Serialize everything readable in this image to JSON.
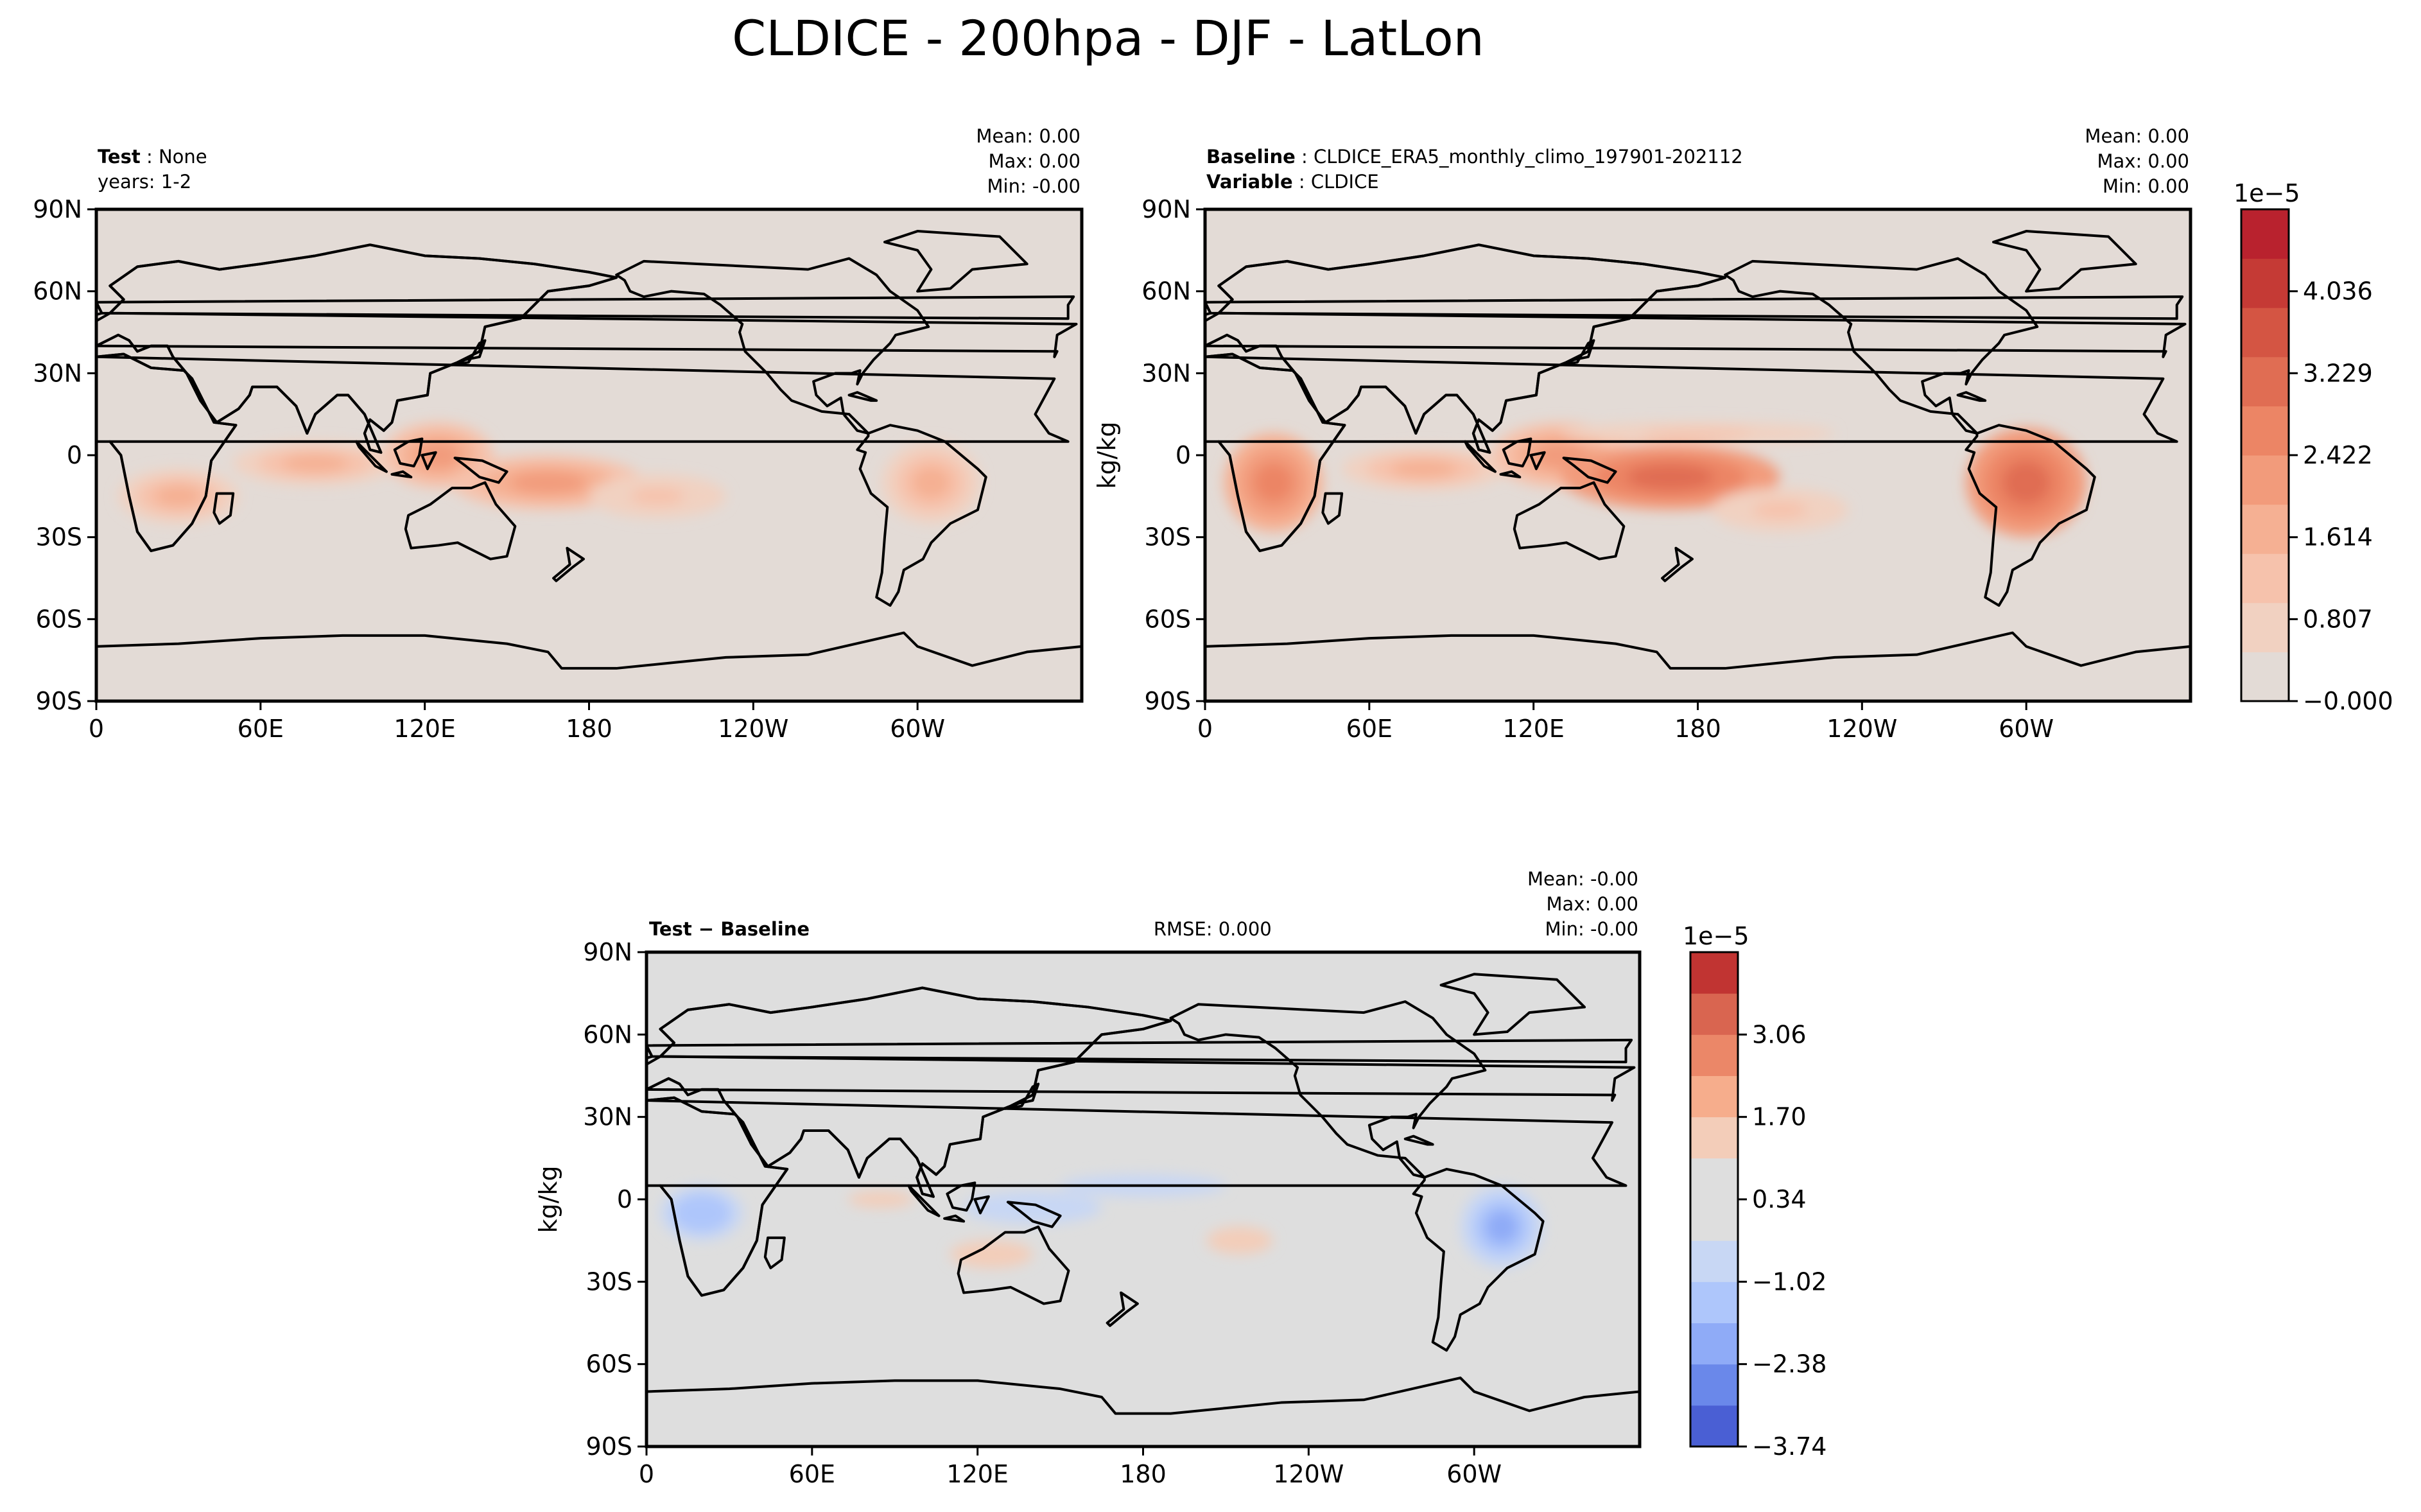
{
  "figure": {
    "title": "CLDICE - 200hpa - DJF - LatLon",
    "colors": {
      "ocean_bg": "#e3dbd6",
      "diff_bg": "#dedede",
      "coastline": "#000000"
    }
  },
  "chart_data": [
    {
      "type": "heatmap",
      "panel": "test",
      "left_meta": [
        {
          "label": "Test",
          "value": "None"
        },
        {
          "label": "",
          "value": "years: 1-2"
        }
      ],
      "center_meta": "",
      "stats": {
        "mean": "Mean:  0.00",
        "max": "Max:  0.00",
        "min": "Min: -0.00"
      },
      "ylabel": "",
      "x_ticks": [
        "0",
        "60E",
        "120E",
        "180",
        "120W",
        "60W"
      ],
      "x_tick_lon": [
        0,
        60,
        120,
        180,
        240,
        300
      ],
      "y_ticks": [
        "90N",
        "60N",
        "30N",
        "0",
        "30S",
        "60S",
        "90S"
      ],
      "y_tick_lat": [
        90,
        60,
        30,
        0,
        -30,
        -60,
        -90
      ],
      "xlim": [
        0,
        360
      ],
      "ylim": [
        -90,
        90
      ],
      "blobs": [
        {
          "lon": 30,
          "lat": -15,
          "rx": 22,
          "ry": 10,
          "level": 3
        },
        {
          "lon": 80,
          "lat": -3,
          "rx": 30,
          "ry": 8,
          "level": 3
        },
        {
          "lon": 125,
          "lat": 0,
          "rx": 20,
          "ry": 12,
          "level": 4
        },
        {
          "lon": 165,
          "lat": -10,
          "rx": 35,
          "ry": 10,
          "level": 4
        },
        {
          "lon": 205,
          "lat": -15,
          "rx": 25,
          "ry": 8,
          "level": 2
        },
        {
          "lon": 305,
          "lat": -10,
          "rx": 18,
          "ry": 15,
          "level": 3
        }
      ]
    },
    {
      "type": "heatmap",
      "panel": "baseline",
      "left_meta": [
        {
          "label": "Baseline",
          "value": "CLDICE_ERA5_monthly_climo_197901-202112"
        },
        {
          "label": "Variable",
          "value": "CLDICE"
        }
      ],
      "center_meta": "",
      "stats": {
        "mean": "Mean:  0.00",
        "max": "Max:  0.00",
        "min": "Min:  0.00"
      },
      "ylabel": "kg/kg",
      "x_ticks": [
        "0",
        "60E",
        "120E",
        "180",
        "120W",
        "60W"
      ],
      "x_tick_lon": [
        0,
        60,
        120,
        180,
        240,
        300
      ],
      "y_ticks": [
        "90N",
        "60N",
        "30N",
        "0",
        "30S",
        "60S",
        "90S"
      ],
      "y_tick_lat": [
        90,
        60,
        30,
        0,
        -30,
        -60,
        -90
      ],
      "xlim": [
        0,
        360
      ],
      "ylim": [
        -90,
        90
      ],
      "colorbar": {
        "exponent": "1e−5",
        "tick_labels": [
          "4.036",
          "3.229",
          "2.422",
          "1.614",
          "0.807",
          "−0.000"
        ],
        "tick_values": [
          4.036,
          3.229,
          2.422,
          1.614,
          0.807,
          0.0
        ],
        "range": [
          0.0,
          4.843
        ],
        "colors": [
          "#e3dbd6",
          "#f1d1c1",
          "#f6c2ac",
          "#f5b093",
          "#f29b7b",
          "#ec8565",
          "#e06d53",
          "#d45543",
          "#c53a35",
          "#b9222e"
        ]
      },
      "blobs": [
        {
          "lon": 25,
          "lat": -10,
          "rx": 18,
          "ry": 18,
          "level": 5
        },
        {
          "lon": 80,
          "lat": -5,
          "rx": 30,
          "ry": 8,
          "level": 3
        },
        {
          "lon": 130,
          "lat": 0,
          "rx": 25,
          "ry": 12,
          "level": 4
        },
        {
          "lon": 170,
          "lat": -8,
          "rx": 40,
          "ry": 12,
          "level": 6
        },
        {
          "lon": 210,
          "lat": -20,
          "rx": 25,
          "ry": 8,
          "level": 2
        },
        {
          "lon": 180,
          "lat": 8,
          "rx": 50,
          "ry": 4,
          "level": 2
        },
        {
          "lon": 300,
          "lat": -10,
          "rx": 22,
          "ry": 20,
          "level": 6
        }
      ]
    },
    {
      "type": "heatmap",
      "panel": "difference",
      "left_meta": [
        {
          "label": "Test",
          "value": ""
        }
      ],
      "left_title_math": "Test − Baseline",
      "center_meta": "RMSE: 0.000",
      "stats": {
        "mean": "Mean: -0.00",
        "max": "Max:  0.00",
        "min": "Min: -0.00"
      },
      "ylabel": "kg/kg",
      "x_ticks": [
        "0",
        "60E",
        "120E",
        "180",
        "120W",
        "60W"
      ],
      "x_tick_lon": [
        0,
        60,
        120,
        180,
        240,
        300
      ],
      "y_ticks": [
        "90N",
        "60N",
        "30N",
        "0",
        "30S",
        "60S",
        "90S"
      ],
      "y_tick_lat": [
        90,
        60,
        30,
        0,
        -30,
        -60,
        -90
      ],
      "xlim": [
        0,
        360
      ],
      "ylim": [
        -90,
        90
      ],
      "colorbar": {
        "exponent": "1e−5",
        "tick_labels": [
          "3.06",
          "1.70",
          "0.34",
          "−1.02",
          "−2.38",
          "−3.74"
        ],
        "tick_values": [
          3.06,
          1.7,
          0.34,
          -1.02,
          -2.38,
          -3.74
        ],
        "range": [
          -3.74,
          4.42
        ],
        "colors": [
          "#4a5fd4",
          "#6a88ea",
          "#8fabf7",
          "#aec6fb",
          "#c8d7f4",
          "#dedede",
          "#dedede",
          "#f3cdb9",
          "#f6ad8c",
          "#eb8768",
          "#d96550",
          "#c13432"
        ]
      },
      "blobs": [
        {
          "lon": 20,
          "lat": -5,
          "rx": 15,
          "ry": 10,
          "level": -2
        },
        {
          "lon": 310,
          "lat": -10,
          "rx": 15,
          "ry": 15,
          "level": -3
        },
        {
          "lon": 140,
          "lat": -3,
          "rx": 25,
          "ry": 6,
          "level": -1
        },
        {
          "lon": 85,
          "lat": 0,
          "rx": 12,
          "ry": 3,
          "level": 1
        },
        {
          "lon": 125,
          "lat": -20,
          "rx": 15,
          "ry": 5,
          "level": 1
        },
        {
          "lon": 215,
          "lat": -15,
          "rx": 12,
          "ry": 5,
          "level": 1
        },
        {
          "lon": 180,
          "lat": 5,
          "rx": 30,
          "ry": 4,
          "level": -1
        }
      ]
    }
  ]
}
